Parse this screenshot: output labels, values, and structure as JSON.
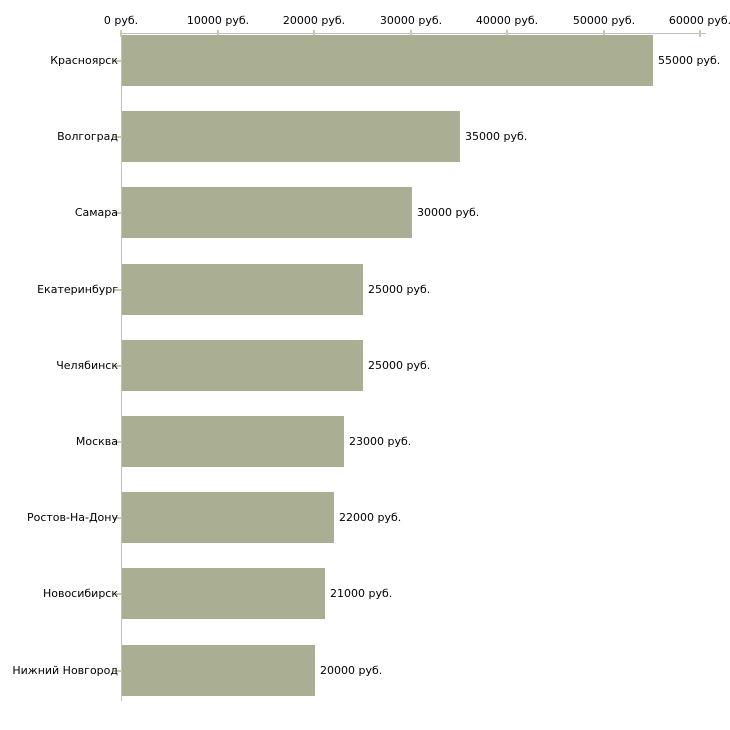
{
  "chart_data": {
    "type": "bar",
    "orientation": "horizontal",
    "title": "",
    "xlabel": "",
    "ylabel": "",
    "categories": [
      "Красноярск",
      "Волгоград",
      "Самара",
      "Екатеринбург",
      "Челябинск",
      "Москва",
      "Ростов-На-Дону",
      "Новосибирск",
      "Нижний Новгород"
    ],
    "values": [
      55000,
      35000,
      30000,
      25000,
      25000,
      23000,
      22000,
      21000,
      20000
    ],
    "value_labels": [
      "55000 руб.",
      "35000 руб.",
      "30000 руб.",
      "25000 руб.",
      "25000 руб.",
      "23000 руб.",
      "22000 руб.",
      "21000 руб.",
      "20000 руб."
    ],
    "x_tick_values": [
      0,
      10000,
      20000,
      30000,
      40000,
      50000,
      60000
    ],
    "x_tick_labels": [
      "0 руб.",
      "10000 руб.",
      "20000 руб.",
      "30000 руб.",
      "40000 руб.",
      "50000 руб.",
      "60000 руб."
    ],
    "xlim": [
      0,
      60000
    ],
    "grid": "off",
    "legend": "none",
    "colors": {
      "bar": "#aaaf94",
      "axis": "#c0c0c0",
      "tick": "#c9c9ae",
      "text": "#000000",
      "background": "#ffffff"
    }
  }
}
